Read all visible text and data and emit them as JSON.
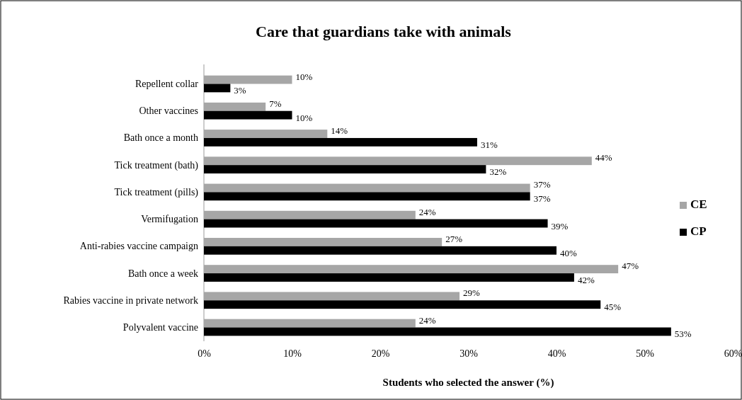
{
  "chart_data": {
    "type": "bar",
    "orientation": "horizontal",
    "title": "Care that guardians take with animals",
    "xlabel": "Students who selected the answer (%)",
    "categories": [
      "Repellent collar",
      "Other vaccines",
      "Bath once a month",
      "Tick treatment  (bath)",
      "Tick treatment  (pills)",
      "Vermifugation",
      "Anti-rabies vaccine campaign",
      "Bath once a week",
      "Rabies vaccine in private network",
      "Polyvalent vaccine"
    ],
    "series": [
      {
        "name": "CE",
        "color": "#a6a6a6",
        "values": [
          10,
          7,
          14,
          44,
          37,
          24,
          27,
          47,
          29,
          24
        ],
        "value_labels": [
          "10%",
          "7%",
          "14%",
          "44%",
          "37%",
          "24%",
          "27%",
          "47%",
          "29%",
          "24%"
        ]
      },
      {
        "name": "CP",
        "color": "#000000",
        "values": [
          3,
          10,
          31,
          32,
          37,
          39,
          40,
          42,
          45,
          53
        ],
        "value_labels": [
          "3%",
          "10%",
          "31%",
          "32%",
          "37%",
          "39%",
          "40%",
          "42%",
          "45%",
          "53%"
        ]
      }
    ],
    "xlim": [
      0,
      60
    ],
    "xticks": [
      {
        "value": 0,
        "label": "0%"
      },
      {
        "value": 10,
        "label": "10%"
      },
      {
        "value": 20,
        "label": "20%"
      },
      {
        "value": 30,
        "label": "30%"
      },
      {
        "value": 40,
        "label": "40%"
      },
      {
        "value": 50,
        "label": "50%"
      },
      {
        "value": 60,
        "label": "60%"
      }
    ],
    "grid": false,
    "legend": "right"
  }
}
